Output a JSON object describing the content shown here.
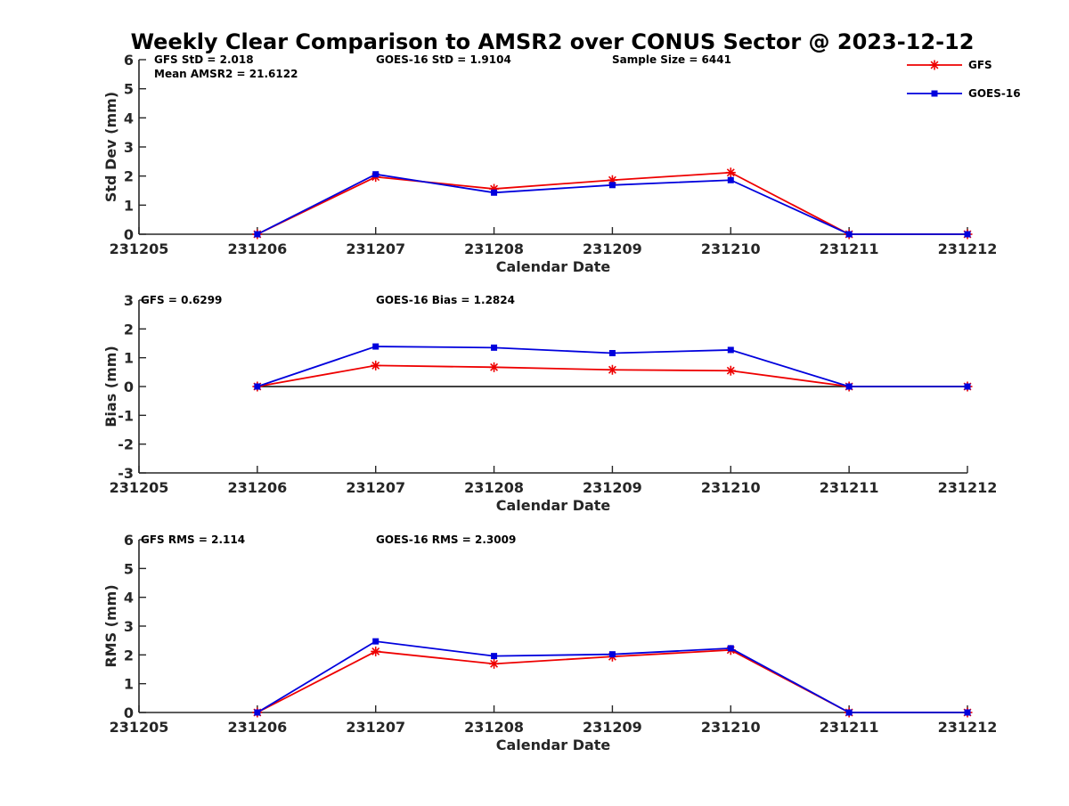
{
  "chart_title": "Weekly Clear Comparison to AMSR2 over CONUS Sector @ 2023-12-12",
  "legend": [
    {
      "name": "GFS",
      "color": "#ee0000",
      "marker": "asterisk"
    },
    {
      "name": "GOES-16",
      "color": "#0000dd",
      "marker": "square"
    }
  ],
  "chart_data": [
    {
      "type": "line",
      "xlabel": "Calendar Date",
      "ylabel": "Std Dev (mm)",
      "x": [
        "231205",
        "231206",
        "231207",
        "231208",
        "231209",
        "231210",
        "231211",
        "231212"
      ],
      "ylim": [
        0,
        6
      ],
      "yticks": [
        "0",
        "1",
        "2",
        "3",
        "4",
        "5",
        "6"
      ],
      "grid": false,
      "zero_line": false,
      "annotations": {
        "gfs_stat": "GFS StD = 2.018",
        "goes_stat": "GOES-16 StD = 1.9104",
        "sample_size": "Sample Size = 6441",
        "mean_amsr2": "Mean AMSR2 = 21.6122"
      },
      "series": [
        {
          "name": "GFS",
          "x": [
            "231206",
            "231207",
            "231208",
            "231209",
            "231210",
            "231211",
            "231212"
          ],
          "values": [
            0,
            1.97,
            1.56,
            1.86,
            2.12,
            0,
            0
          ]
        },
        {
          "name": "GOES-16",
          "x": [
            "231206",
            "231207",
            "231208",
            "231209",
            "231210",
            "231211",
            "231212"
          ],
          "values": [
            0,
            2.06,
            1.43,
            1.69,
            1.86,
            0,
            0
          ]
        }
      ]
    },
    {
      "type": "line",
      "xlabel": "Calendar Date",
      "ylabel": "Bias (mm)",
      "x": [
        "231205",
        "231206",
        "231207",
        "231208",
        "231209",
        "231210",
        "231211",
        "231212"
      ],
      "ylim": [
        -3,
        3
      ],
      "yticks": [
        "-3",
        "-2",
        "-1",
        "0",
        "1",
        "2",
        "3"
      ],
      "grid": false,
      "zero_line": true,
      "annotations": {
        "gfs_stat": "GFS = 0.6299",
        "goes_stat": "GOES-16 Bias  = 1.2824"
      },
      "series": [
        {
          "name": "GFS",
          "x": [
            "231206",
            "231207",
            "231208",
            "231209",
            "231210",
            "231211",
            "231212"
          ],
          "values": [
            0,
            0.73,
            0.67,
            0.58,
            0.55,
            0,
            0
          ]
        },
        {
          "name": "GOES-16",
          "x": [
            "231206",
            "231207",
            "231208",
            "231209",
            "231210",
            "231211",
            "231212"
          ],
          "values": [
            0,
            1.39,
            1.35,
            1.16,
            1.27,
            0,
            0
          ]
        }
      ]
    },
    {
      "type": "line",
      "xlabel": "Calendar Date",
      "ylabel": "RMS (mm)",
      "x": [
        "231205",
        "231206",
        "231207",
        "231208",
        "231209",
        "231210",
        "231211",
        "231212"
      ],
      "ylim": [
        0,
        6
      ],
      "yticks": [
        "0",
        "1",
        "2",
        "3",
        "4",
        "5",
        "6"
      ],
      "grid": false,
      "zero_line": false,
      "annotations": {
        "gfs_stat": "GFS RMS = 2.114",
        "goes_stat": "GOES-16 RMS = 2.3009"
      },
      "series": [
        {
          "name": "GFS",
          "x": [
            "231206",
            "231207",
            "231208",
            "231209",
            "231210",
            "231211",
            "231212"
          ],
          "values": [
            0,
            2.12,
            1.69,
            1.94,
            2.17,
            0,
            0
          ]
        },
        {
          "name": "GOES-16",
          "x": [
            "231206",
            "231207",
            "231208",
            "231209",
            "231210",
            "231211",
            "231212"
          ],
          "values": [
            0,
            2.47,
            1.96,
            2.02,
            2.23,
            0,
            0
          ]
        }
      ]
    }
  ]
}
